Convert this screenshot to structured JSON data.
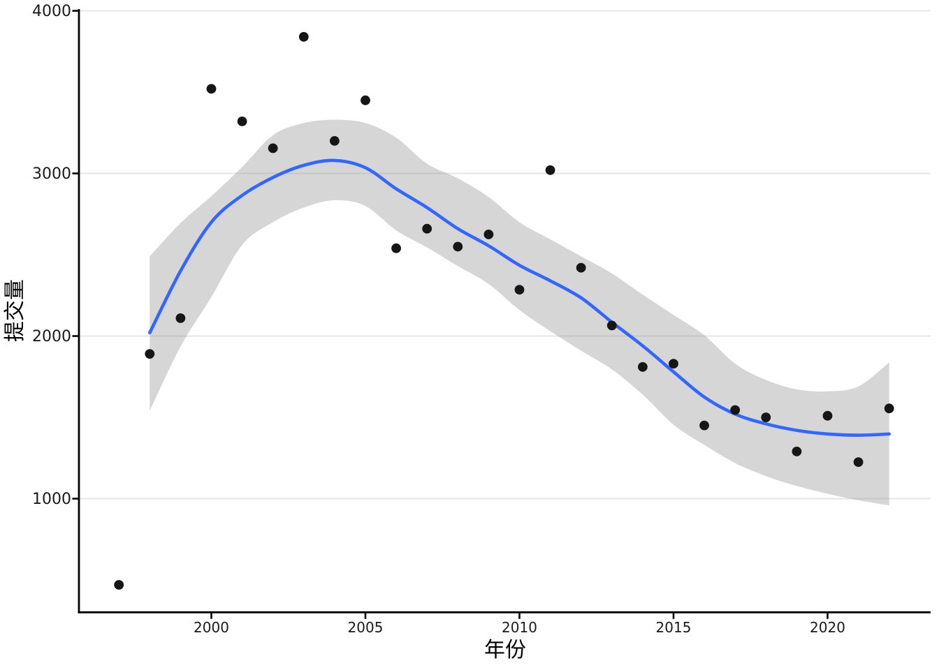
{
  "chart_data": {
    "type": "scatter",
    "title": "",
    "xlabel": "年份",
    "ylabel": "提交量",
    "x_ticks": [
      2000,
      2005,
      2010,
      2015,
      2020
    ],
    "y_ticks": [
      1000,
      2000,
      3000,
      4000
    ],
    "xlim": [
      1995.7,
      2023.3
    ],
    "ylim": [
      300,
      4010
    ],
    "grid": "horizontal-major-only",
    "legend_position": "none",
    "points": {
      "name": "yearly-submissions",
      "x": [
        1997,
        1998,
        1999,
        2000,
        2001,
        2002,
        2003,
        2004,
        2005,
        2006,
        2007,
        2008,
        2009,
        2010,
        2011,
        2012,
        2013,
        2014,
        2015,
        2016,
        2017,
        2018,
        2019,
        2020,
        2021,
        2022
      ],
      "y": [
        470,
        1890,
        2110,
        3520,
        3320,
        3155,
        3840,
        3200,
        3450,
        2540,
        2660,
        2550,
        2625,
        2285,
        3020,
        2420,
        2065,
        1810,
        1830,
        1450,
        1545,
        1500,
        1290,
        1510,
        1225,
        1555
      ]
    },
    "smooth_line": {
      "name": "loess-smooth",
      "x": [
        1998,
        1999,
        2000,
        2001,
        2002,
        2003,
        2004,
        2005,
        2006,
        2007,
        2008,
        2009,
        2010,
        2011,
        2012,
        2013,
        2014,
        2015,
        2016,
        2017,
        2018,
        2019,
        2020,
        2021,
        2022
      ],
      "y": [
        2020,
        2400,
        2700,
        2865,
        2975,
        3050,
        3080,
        3035,
        2905,
        2790,
        2660,
        2555,
        2435,
        2340,
        2235,
        2085,
        1940,
        1780,
        1625,
        1520,
        1460,
        1420,
        1398,
        1390,
        1398
      ]
    },
    "confidence_band": {
      "x": [
        1998,
        1999,
        2000,
        2001,
        2002,
        2003,
        2004,
        2005,
        2006,
        2007,
        2008,
        2009,
        2010,
        2011,
        2012,
        2013,
        2014,
        2015,
        2016,
        2017,
        2018,
        2019,
        2020,
        2021,
        2022
      ],
      "upper": [
        2490,
        2695,
        2860,
        3040,
        3235,
        3310,
        3330,
        3310,
        3220,
        3060,
        2970,
        2855,
        2700,
        2595,
        2490,
        2385,
        2255,
        2130,
        2005,
        1830,
        1730,
        1672,
        1660,
        1690,
        1838
      ],
      "lower": [
        1540,
        1935,
        2240,
        2560,
        2700,
        2790,
        2835,
        2800,
        2650,
        2545,
        2430,
        2320,
        2160,
        2030,
        1910,
        1795,
        1640,
        1455,
        1330,
        1219,
        1139,
        1078,
        1030,
        990,
        958
      ]
    },
    "colors": {
      "point": "#161616",
      "smooth_line": "#3366FF",
      "band_fill": "#999999",
      "band_opacity": 0.4,
      "gridline": "#E6E6E6",
      "axis": "#000000",
      "tick_label": "#1A1A1A",
      "axis_title": "#000000",
      "background": "#FFFFFF"
    }
  }
}
